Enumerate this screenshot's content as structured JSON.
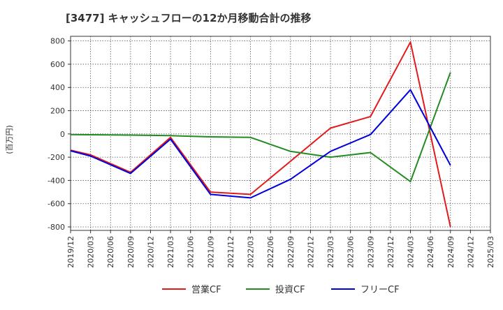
{
  "chart_data": {
    "type": "line",
    "title": "[3477]  キャッシュフローの12か月移動合計の推移",
    "ylabel": "(百万円)",
    "xlabel": "",
    "ylim": [
      -830,
      840
    ],
    "y_ticks": [
      800,
      600,
      400,
      200,
      0,
      -200,
      -400,
      -600,
      -800
    ],
    "categories": [
      "2019/12",
      "2020/03",
      "2020/06",
      "2020/09",
      "2020/12",
      "2021/03",
      "2021/06",
      "2021/09",
      "2021/12",
      "2022/03",
      "2022/06",
      "2022/09",
      "2022/12",
      "2023/03",
      "2023/06",
      "2023/09",
      "2023/12",
      "2024/03",
      "2024/06",
      "2024/09",
      "2024/12",
      "2025/03"
    ],
    "series": [
      {
        "name": "営業CF",
        "color": "#e31a1c",
        "values": [
          -140,
          -180,
          null,
          -330,
          null,
          -30,
          null,
          -500,
          null,
          -520,
          null,
          null,
          null,
          50,
          null,
          150,
          null,
          790,
          null,
          -800,
          null,
          null
        ]
      },
      {
        "name": "投資CF",
        "color": "#228b22",
        "values": [
          -5,
          -7,
          null,
          -10,
          null,
          -15,
          null,
          -25,
          null,
          -30,
          null,
          -150,
          null,
          -200,
          null,
          -160,
          null,
          -410,
          null,
          530,
          null,
          null
        ]
      },
      {
        "name": "フリーCF",
        "color": "#0000dd",
        "values": [
          -145,
          -190,
          null,
          -340,
          null,
          -45,
          null,
          -520,
          null,
          -550,
          null,
          -390,
          null,
          -150,
          null,
          -5,
          null,
          380,
          null,
          -270,
          null,
          null
        ]
      }
    ]
  }
}
